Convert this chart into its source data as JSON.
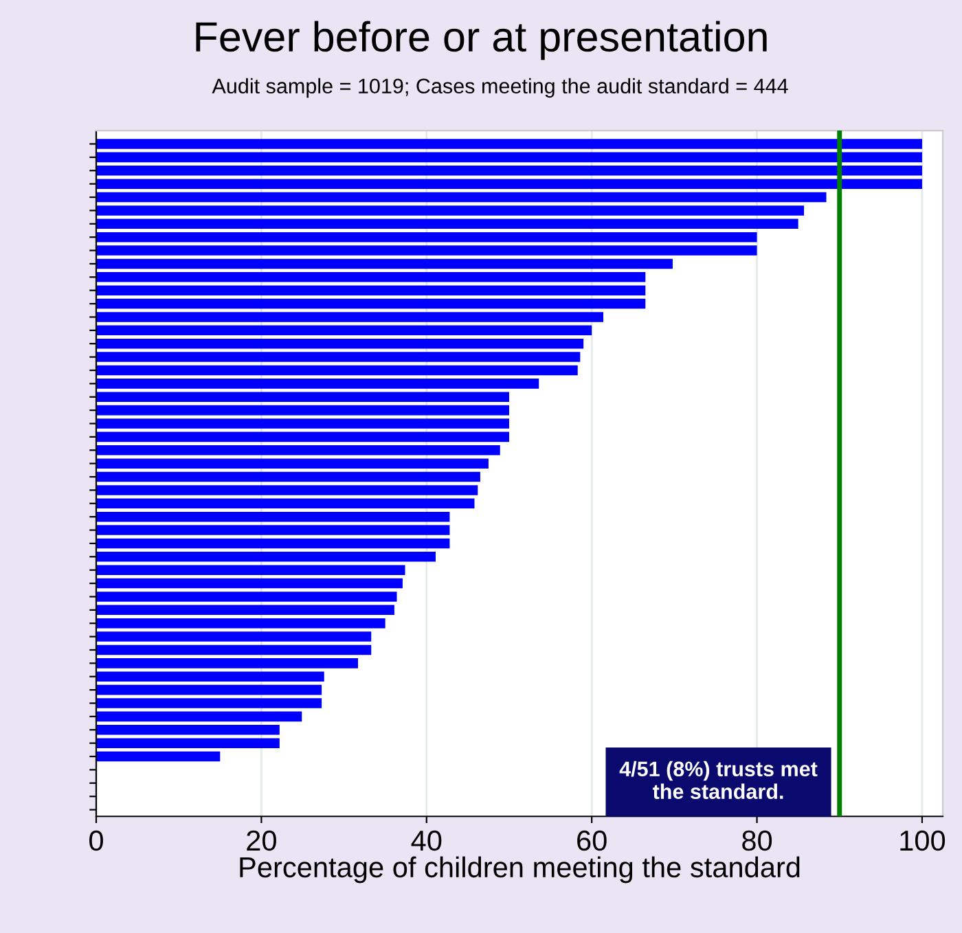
{
  "chart_data": {
    "type": "bar",
    "orientation": "horizontal",
    "title": "Fever before or at presentation",
    "subtitle": "Audit sample = 1019; Cases meeting the audit standard = 444",
    "xlabel": "Percentage of children meeting the standard",
    "categories": [
      null,
      null,
      null,
      null,
      null,
      null,
      null,
      null,
      null,
      null,
      null,
      null,
      null,
      null,
      null,
      null,
      null,
      null,
      null,
      null,
      null,
      null,
      null,
      null,
      null,
      null,
      null,
      null,
      null,
      null,
      null,
      null,
      null,
      null,
      null,
      null,
      null,
      null,
      null,
      null,
      null,
      null,
      null,
      null,
      null,
      null,
      null,
      null,
      null,
      null,
      null
    ],
    "values": [
      100,
      100,
      100,
      100,
      88.4,
      85.7,
      85.0,
      80,
      80,
      69.8,
      66.5,
      66.5,
      66.5,
      61.4,
      60,
      59,
      58.6,
      58.3,
      53.6,
      50,
      50,
      50,
      50,
      48.9,
      47.5,
      46.5,
      46.2,
      45.8,
      42.8,
      42.8,
      42.8,
      41.1,
      37.4,
      37.1,
      36.4,
      36.1,
      35,
      33.3,
      33.3,
      31.7,
      27.6,
      27.3,
      27.3,
      24.9,
      22.2,
      22.2,
      15,
      0,
      0,
      0,
      0
    ],
    "color": "#0000ff",
    "xlim": [
      0,
      102.5
    ],
    "xticks": [
      0,
      20,
      40,
      60,
      80,
      100
    ],
    "grid": "x",
    "ref_lines": [
      {
        "axis": "x",
        "value": 90,
        "color": "#008000"
      }
    ],
    "annotations": [
      "4/51 (8%) trusts met\nthe standard."
    ]
  }
}
